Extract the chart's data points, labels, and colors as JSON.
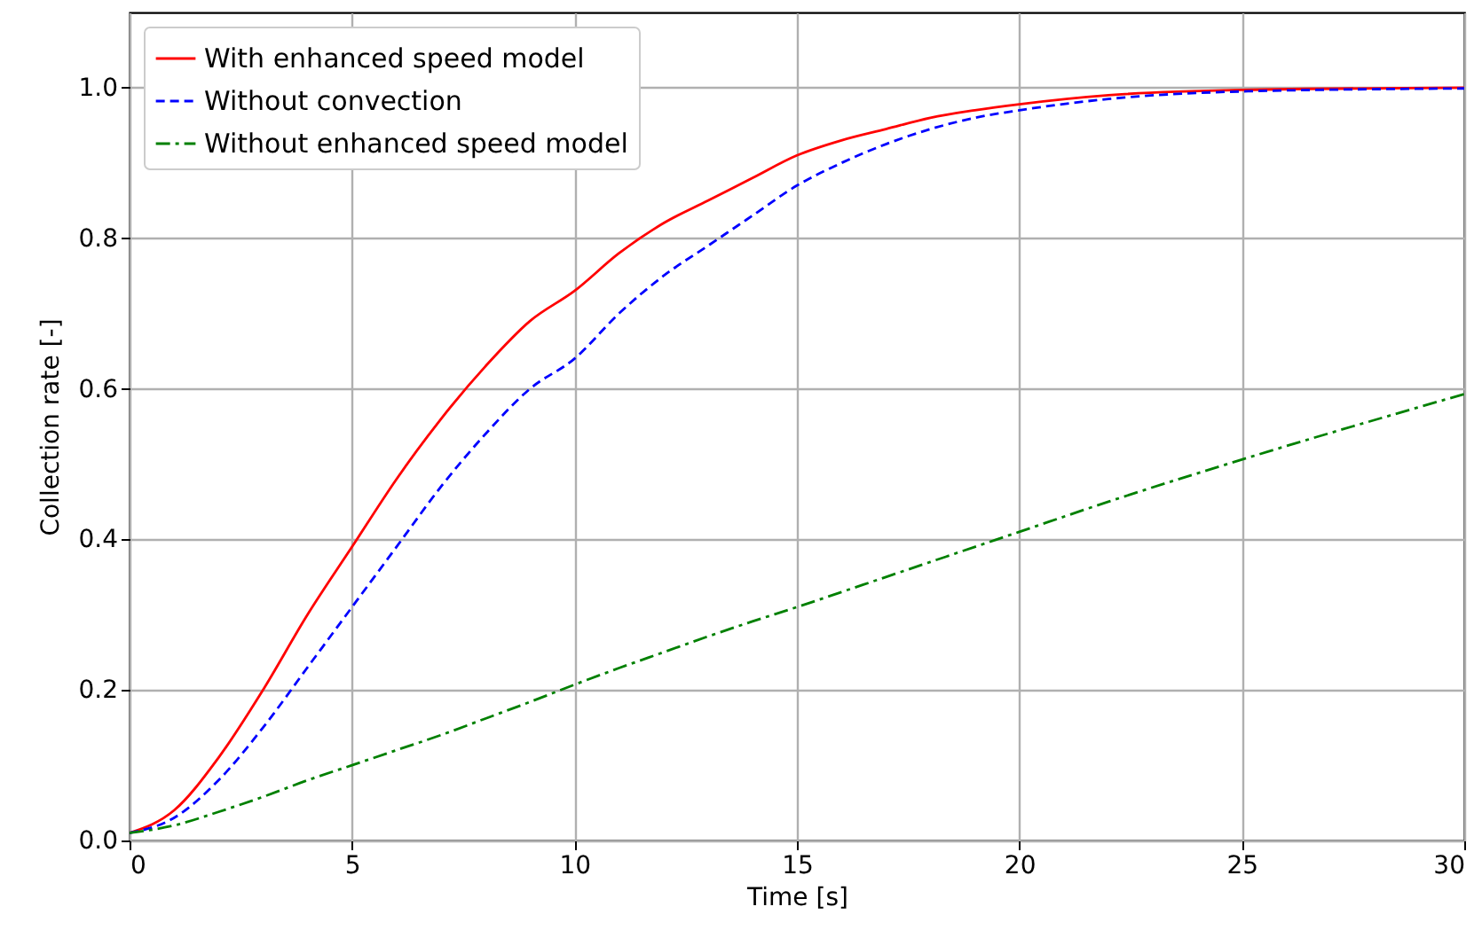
{
  "chart_data": {
    "type": "line",
    "xlabel": "Time [s]",
    "ylabel": "Collection rate [-]",
    "x": [
      0,
      1,
      2,
      3,
      4,
      5,
      6,
      7,
      8,
      9,
      10,
      11,
      12,
      13,
      14,
      15,
      16,
      17,
      18,
      19,
      20,
      22,
      25,
      30
    ],
    "xlim": [
      0,
      30
    ],
    "xticks": [
      0,
      5,
      10,
      15,
      20,
      25,
      30
    ],
    "ylim": [
      0,
      1.1
    ],
    "yticks": [
      {
        "value": 0,
        "label": "0.0"
      },
      0.2,
      0.4,
      0.6,
      0.8,
      {
        "value": 1,
        "label": "1.0"
      }
    ],
    "grid": true,
    "legend": "top left",
    "marker": "none",
    "series": [
      {
        "name": "With enhanced speed model",
        "color": "#ff0000",
        "line_style": "solid",
        "values": [
          0.01,
          0.04,
          0.11,
          0.2,
          0.3,
          0.39,
          0.48,
          0.56,
          0.63,
          0.69,
          0.73,
          0.78,
          0.82,
          0.85,
          0.88,
          0.91,
          0.93,
          0.945,
          0.96,
          0.97,
          0.978,
          0.99,
          0.997,
          1.0
        ]
      },
      {
        "name": "Without convection",
        "color": "#0000ff",
        "line_style": "dashed",
        "values": [
          0.01,
          0.03,
          0.08,
          0.15,
          0.23,
          0.31,
          0.39,
          0.47,
          0.54,
          0.6,
          0.64,
          0.7,
          0.75,
          0.79,
          0.83,
          0.87,
          0.9,
          0.925,
          0.945,
          0.96,
          0.97,
          0.985,
          0.995,
          0.999
        ]
      },
      {
        "name": "Without enhanced speed model",
        "color": "#008000",
        "line_style": "dashdot",
        "values": [
          0.01,
          0.02,
          0.038,
          0.058,
          0.08,
          0.1,
          0.12,
          0.14,
          0.162,
          0.184,
          0.207,
          0.229,
          0.25,
          0.271,
          0.291,
          0.31,
          0.33,
          0.35,
          0.37,
          0.39,
          0.41,
          0.45,
          0.506,
          0.593
        ]
      }
    ]
  }
}
